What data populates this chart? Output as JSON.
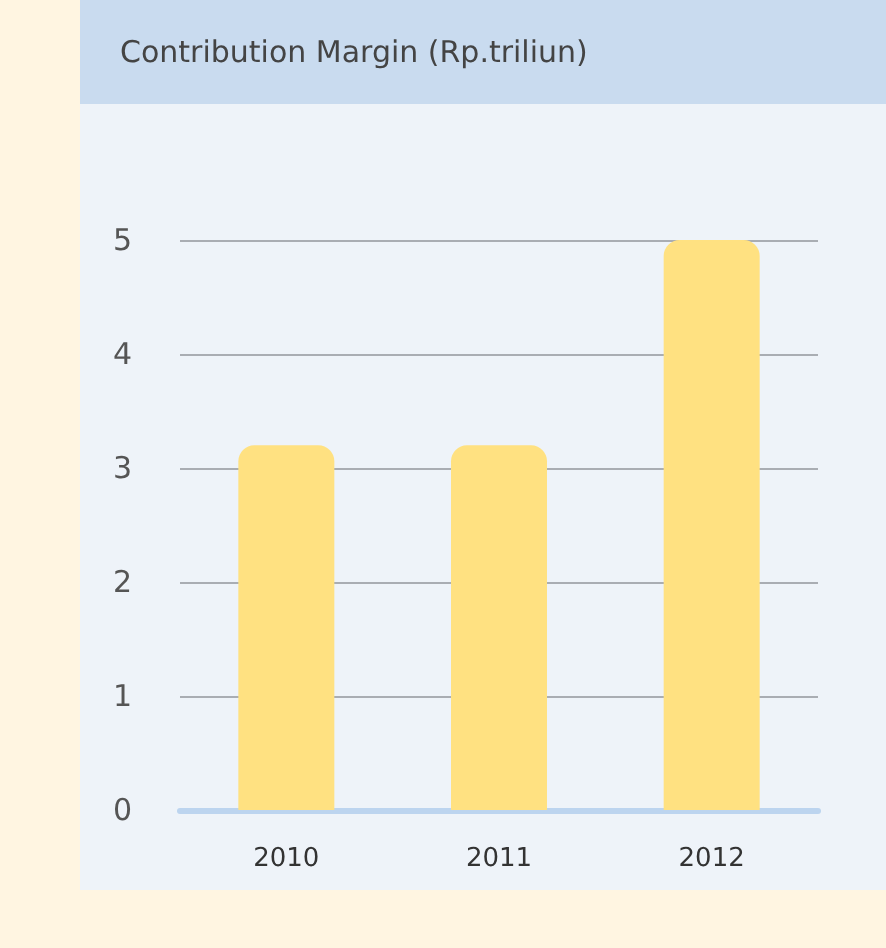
{
  "chart_data": {
    "type": "bar",
    "title": "Contribution Margin (Rp.triliun)",
    "categories": [
      "2010",
      "2011",
      "2012"
    ],
    "values": [
      3.2,
      3.2,
      5.0
    ],
    "color": "#ffe181",
    "ylim": [
      0,
      5
    ],
    "yticks": [
      0,
      1,
      2,
      3,
      4,
      5
    ],
    "grid": "y"
  }
}
